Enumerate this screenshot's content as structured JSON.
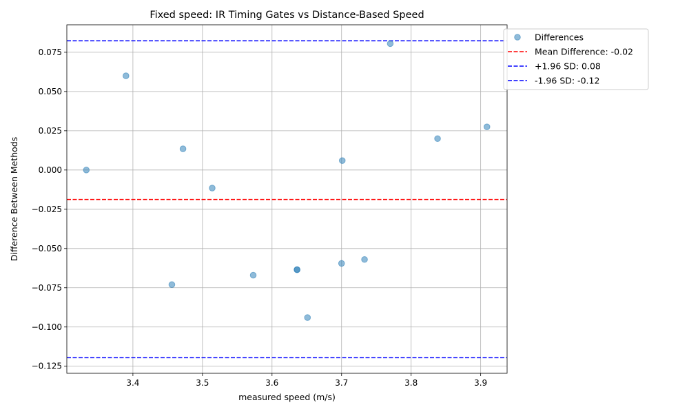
{
  "chart_data": {
    "type": "scatter",
    "title": "Fixed speed: IR Timing Gates vs Distance-Based Speed",
    "xlabel": "measured speed (m/s)",
    "ylabel": "Difference Between Methods",
    "xlim": [
      3.305,
      3.938
    ],
    "ylim": [
      -0.1295,
      0.0925
    ],
    "grid": true,
    "x_ticks": [
      "3.4",
      "3.5",
      "3.6",
      "3.7",
      "3.8",
      "3.9"
    ],
    "x_tick_values": [
      3.4,
      3.5,
      3.6,
      3.7,
      3.8,
      3.9
    ],
    "y_ticks": [
      "−0.125",
      "−0.100",
      "−0.075",
      "−0.050",
      "−0.025",
      "0.000",
      "0.025",
      "0.050",
      "0.075"
    ],
    "y_tick_values": [
      -0.125,
      -0.1,
      -0.075,
      -0.05,
      -0.025,
      0.0,
      0.025,
      0.05,
      0.075
    ],
    "legend_position": "outside-top-right",
    "series": [
      {
        "name": "Differences",
        "color": "#1f77b4",
        "alpha": 0.5,
        "points": [
          {
            "x": 3.333,
            "y": 0.0
          },
          {
            "x": 3.39,
            "y": 0.06
          },
          {
            "x": 3.456,
            "y": -0.073
          },
          {
            "x": 3.472,
            "y": 0.0135
          },
          {
            "x": 3.514,
            "y": -0.0115
          },
          {
            "x": 3.573,
            "y": -0.067
          },
          {
            "x": 3.636,
            "y": -0.0635
          },
          {
            "x": 3.636,
            "y": -0.0635
          },
          {
            "x": 3.651,
            "y": -0.094
          },
          {
            "x": 3.7,
            "y": -0.0595
          },
          {
            "x": 3.701,
            "y": 0.006
          },
          {
            "x": 3.733,
            "y": -0.057
          },
          {
            "x": 3.77,
            "y": 0.0805
          },
          {
            "x": 3.838,
            "y": 0.02
          },
          {
            "x": 3.909,
            "y": 0.0275
          }
        ]
      }
    ],
    "reference_lines": [
      {
        "name": "Mean Difference: -0.02",
        "y": -0.0188,
        "color": "#ff0000",
        "style": "dashed"
      },
      {
        "name": "+1.96 SD: 0.08",
        "y": 0.0823,
        "color": "#0000ff",
        "style": "dashed"
      },
      {
        "name": "-1.96 SD: -0.12",
        "y": -0.1196,
        "color": "#0000ff",
        "style": "dashed"
      }
    ]
  }
}
